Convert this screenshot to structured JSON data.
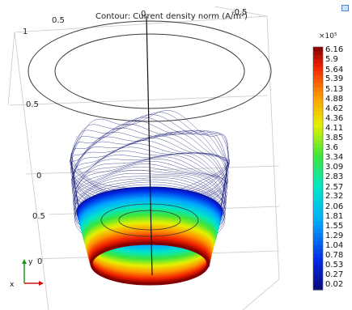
{
  "chart_data": {
    "type": "contour",
    "title": "Contour: Current density norm (A/m²)",
    "colorbar": {
      "scale_label": "×10⁵",
      "ticks": [
        6.16,
        5.9,
        5.64,
        5.39,
        5.13,
        4.88,
        4.62,
        4.36,
        4.11,
        3.85,
        3.6,
        3.34,
        3.09,
        2.83,
        2.57,
        2.32,
        2.06,
        1.81,
        1.55,
        1.29,
        1.04,
        0.78,
        0.53,
        0.27,
        0.02
      ],
      "colormap": "rainbow",
      "range": [
        0.02,
        6.16
      ]
    },
    "axis_tick_labels": [
      "0.5",
      "0",
      "-0.5",
      "1",
      "0.5",
      "0",
      "0.5",
      "0"
    ],
    "triad": {
      "x_label": "x",
      "y_label": "y"
    }
  },
  "colors": {
    "contour_line": "#1a1f7a",
    "wire": "#3a3a3a",
    "grid": "#c8c8c8"
  },
  "icons": {
    "corner": "view-icon"
  }
}
